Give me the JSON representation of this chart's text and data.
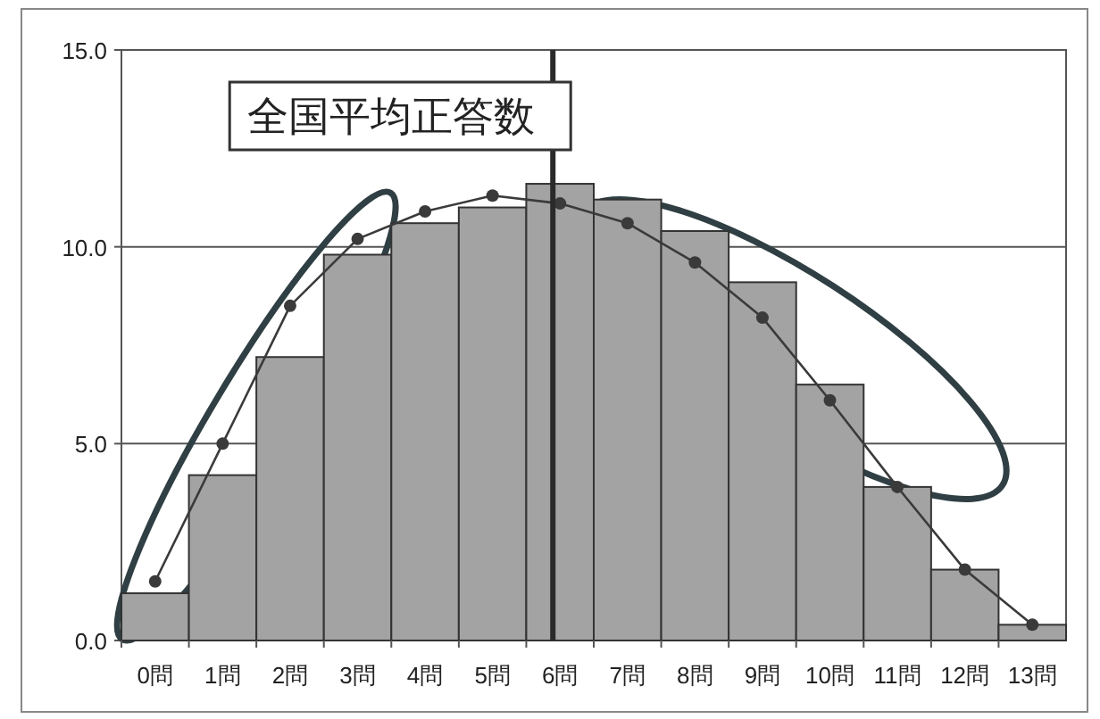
{
  "chart_data": {
    "type": "bar",
    "categories": [
      "0問",
      "1問",
      "2問",
      "3問",
      "4問",
      "5問",
      "6問",
      "7問",
      "8問",
      "9問",
      "10問",
      "11問",
      "12問",
      "13問"
    ],
    "series": [
      {
        "color": "#a3a3a3",
        "values": [
          1.2,
          4.2,
          7.2,
          9.8,
          10.6,
          11.0,
          11.6,
          11.2,
          10.4,
          9.1,
          6.5,
          3.9,
          1.8,
          0.4
        ]
      },
      {
        "type": "line",
        "color": "#3a3a3a",
        "marker": "circle",
        "line_style": "solid",
        "values": [
          1.5,
          5.0,
          8.5,
          10.2,
          10.9,
          11.3,
          11.1,
          10.6,
          9.6,
          8.2,
          6.1,
          3.9,
          1.8,
          0.4
        ]
      }
    ],
    "ylim": [
      0,
      15
    ],
    "yticks": [
      {
        "value": 0,
        "label": "0.0"
      },
      {
        "value": 5,
        "label": "5.0"
      },
      {
        "value": 10,
        "label": "10.0"
      },
      {
        "value": 15,
        "label": "15.0"
      }
    ],
    "grid": "y",
    "ref_lines": [
      {
        "axis": "x",
        "value": "6問",
        "label": "全国平均正答数",
        "color": "#2a2a2a"
      }
    ]
  }
}
